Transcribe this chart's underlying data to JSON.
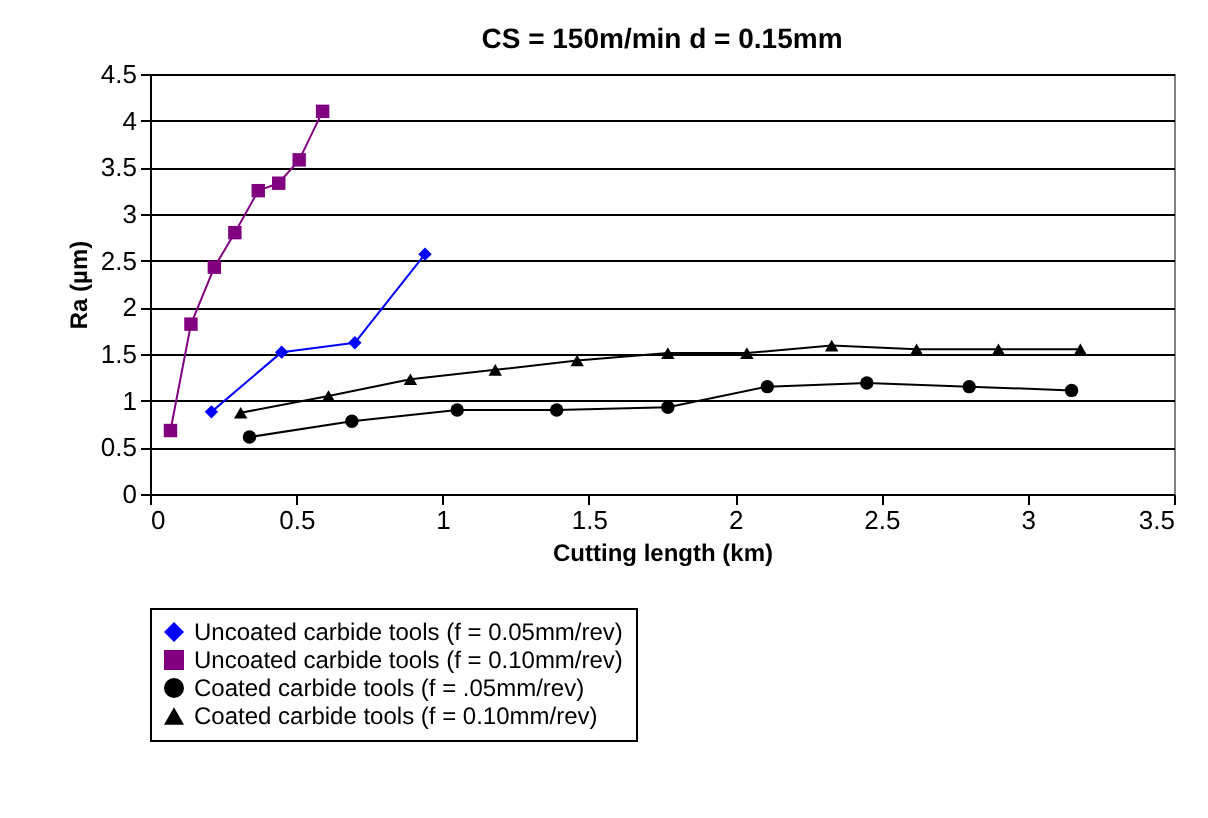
{
  "chart_data": {
    "type": "line",
    "title": "CS = 150m/min   d = 0.15mm",
    "xlabel": "Cutting length (km)",
    "ylabel": "Ra (µm)",
    "xlim": [
      0,
      3.5
    ],
    "xticks": [
      0,
      0.5,
      1,
      1.5,
      2,
      2.5,
      3,
      3.5
    ],
    "ylim": [
      0,
      4.5
    ],
    "yticks": [
      0,
      0.5,
      1,
      1.5,
      2,
      2.5,
      3,
      3.5,
      4,
      4.5
    ],
    "grid": "y",
    "legend": "bottom",
    "series": [
      {
        "name": "Uncoated carbide tools (f = 0.05mm/rev)",
        "color": "#0000ff",
        "marker": "diamond",
        "x": [
          0.21,
          0.45,
          0.7,
          0.94
        ],
        "values": [
          0.88,
          1.52,
          1.62,
          2.57
        ]
      },
      {
        "name": "Uncoated carbide tools (f = 0.10mm/rev)",
        "color": "#800080",
        "marker": "square",
        "x": [
          0.07,
          0.14,
          0.22,
          0.29,
          0.37,
          0.44,
          0.51,
          0.59
        ],
        "values": [
          0.68,
          1.82,
          2.43,
          2.8,
          3.25,
          3.33,
          3.58,
          4.1
        ]
      },
      {
        "name": "Coated carbide tools (f = .05mm/rev)",
        "color": "#000000",
        "marker": "circle",
        "x": [
          0.34,
          0.69,
          1.05,
          1.39,
          1.77,
          2.11,
          2.45,
          2.8,
          3.15
        ],
        "values": [
          0.61,
          0.78,
          0.9,
          0.9,
          0.93,
          1.15,
          1.19,
          1.15,
          1.11
        ]
      },
      {
        "name": "Coated carbide tools (f = 0.10mm/rev)",
        "color": "#000000",
        "marker": "triangle",
        "x": [
          0.31,
          0.61,
          0.89,
          1.18,
          1.46,
          1.77,
          2.04,
          2.33,
          2.62,
          2.9,
          3.18
        ],
        "values": [
          0.87,
          1.05,
          1.23,
          1.33,
          1.43,
          1.51,
          1.51,
          1.59,
          1.55,
          1.55,
          1.55
        ]
      }
    ]
  }
}
